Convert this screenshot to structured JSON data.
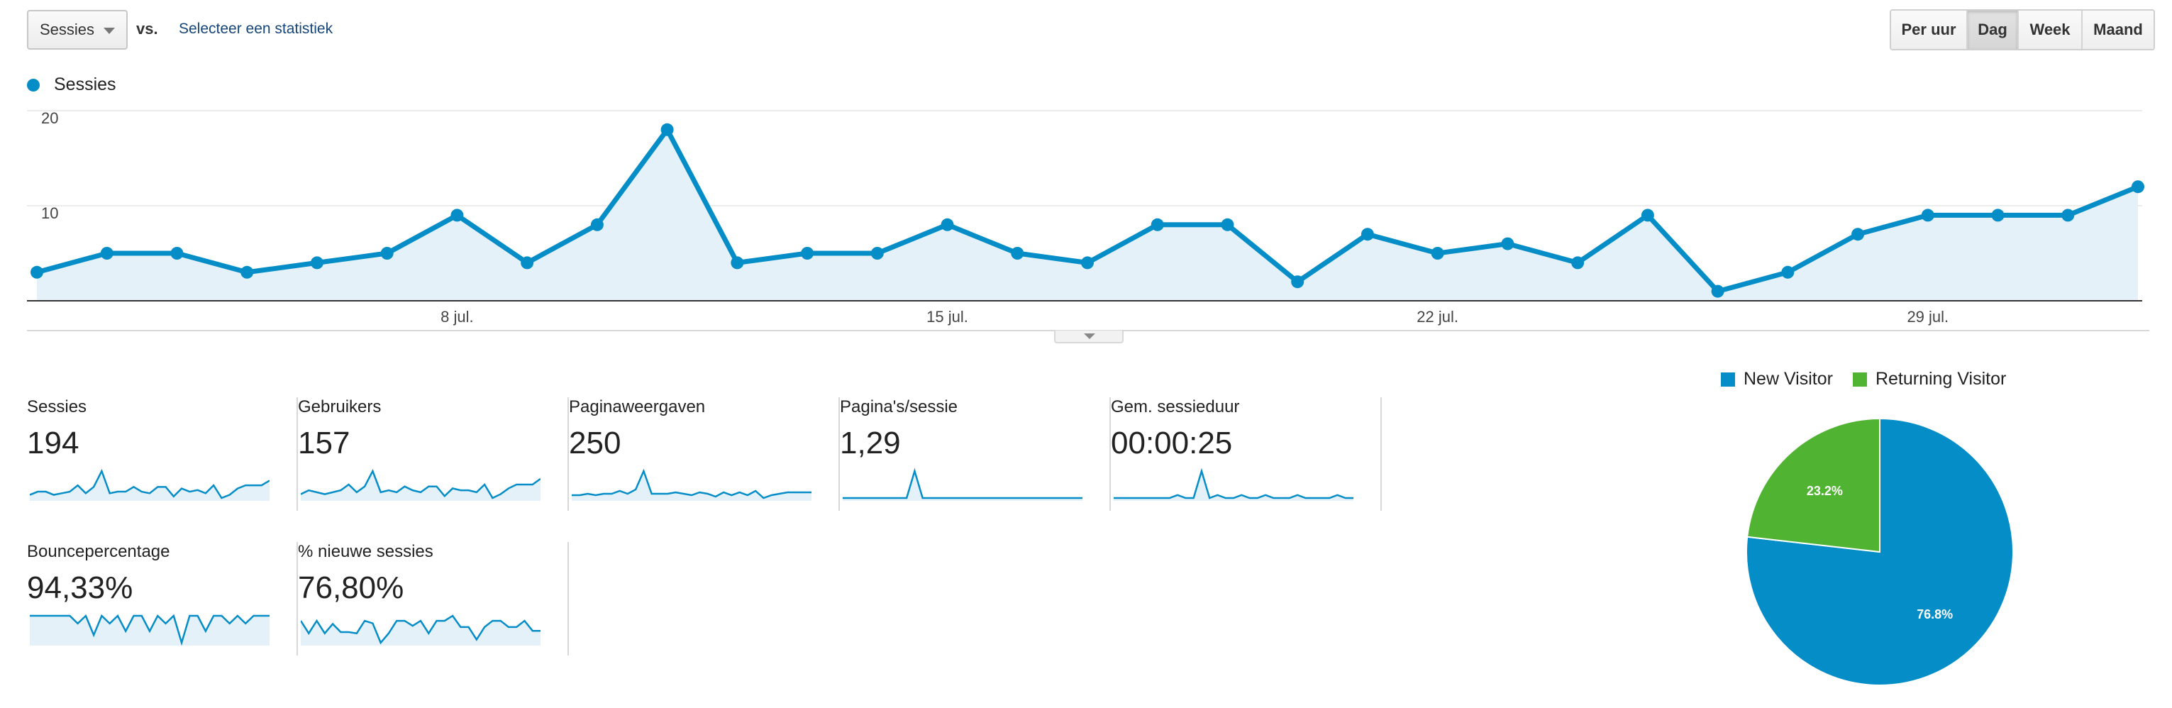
{
  "toolbar": {
    "metric_selected": "Sessies",
    "vs_label": "vs.",
    "compare_link": "Selecteer een statistiek",
    "periods": [
      "Per uur",
      "Dag",
      "Week",
      "Maand"
    ],
    "active_period": "Dag"
  },
  "colors": {
    "primary": "#058dc7",
    "secondary": "#50b432",
    "area_fill": "#e5f1f8",
    "spark_fill": "#e5f1f8"
  },
  "chart_data": [
    {
      "type": "line",
      "series": [
        {
          "name": "Sessies",
          "values": [
            3,
            5,
            5,
            3,
            4,
            5,
            9,
            4,
            8,
            18,
            4,
            5,
            5,
            8,
            5,
            4,
            8,
            8,
            2,
            7,
            5,
            6,
            4,
            9,
            1,
            3,
            7,
            9,
            9,
            9,
            12
          ]
        }
      ],
      "x_tick_labels": [
        "8 jul.",
        "15 jul.",
        "22 jul.",
        "29 jul."
      ],
      "x_tick_index": [
        6,
        13,
        20,
        27
      ],
      "y_ticks": [
        10,
        20
      ],
      "ylim": [
        0,
        20
      ],
      "grid": true,
      "area": true
    },
    {
      "type": "pie",
      "slices": [
        {
          "label": "New Visitor",
          "value": 76.8,
          "label_text": "76.8%"
        },
        {
          "label": "Returning Visitor",
          "value": 23.2,
          "label_text": "23.2%"
        }
      ],
      "legend_placement": "top"
    }
  ],
  "scorecards": [
    {
      "label": "Sessies",
      "value": "194",
      "spark": [
        3,
        5,
        5,
        3,
        4,
        5,
        9,
        4,
        8,
        18,
        4,
        5,
        5,
        8,
        5,
        4,
        8,
        8,
        2,
        7,
        5,
        6,
        4,
        9,
        1,
        3,
        7,
        9,
        9,
        9,
        12
      ]
    },
    {
      "label": "Gebruikers",
      "value": "157",
      "spark": [
        3,
        5,
        4,
        3,
        4,
        5,
        8,
        4,
        7,
        15,
        4,
        5,
        4,
        7,
        5,
        4,
        7,
        7,
        2,
        6,
        5,
        5,
        4,
        8,
        1,
        3,
        6,
        8,
        8,
        8,
        11
      ]
    },
    {
      "label": "Paginaweergaven",
      "value": "250",
      "spark": [
        3,
        3,
        4,
        3,
        4,
        4,
        6,
        4,
        7,
        20,
        4,
        4,
        4,
        5,
        4,
        3,
        5,
        4,
        2,
        5,
        3,
        5,
        3,
        6,
        1,
        3,
        4,
        5,
        5,
        5,
        5
      ]
    },
    {
      "label": "Pagina's/sessie",
      "value": "1,29",
      "spark": [
        1,
        1,
        1,
        1,
        1,
        1,
        1,
        1,
        1,
        6,
        1,
        1,
        1,
        1,
        1,
        1,
        1,
        1,
        1,
        1,
        1,
        1,
        1,
        1,
        1,
        1,
        1,
        1,
        1,
        1,
        1
      ]
    },
    {
      "label": "Gem. sessieduur",
      "value": "00:00:25",
      "spark": [
        0,
        0,
        0,
        0,
        0,
        0,
        0,
        0,
        1,
        0,
        0,
        9,
        0,
        1,
        0,
        0,
        1,
        0,
        0,
        1,
        0,
        0,
        0,
        1,
        0,
        0,
        0,
        0,
        1,
        0,
        0
      ]
    },
    {
      "label": "Bouncepercentage",
      "value": "94,33%",
      "spark": [
        100,
        100,
        100,
        100,
        100,
        100,
        96,
        100,
        90,
        100,
        96,
        100,
        92,
        100,
        100,
        92,
        100,
        96,
        100,
        86,
        100,
        100,
        92,
        100,
        100,
        96,
        100,
        96,
        100,
        100,
        100
      ]
    },
    {
      "label": "% nieuwe sessies",
      "value": "76,80%",
      "spark": [
        80,
        60,
        80,
        60,
        75,
        62,
        62,
        60,
        80,
        76,
        45,
        60,
        80,
        80,
        72,
        80,
        60,
        80,
        80,
        88,
        70,
        70,
        50,
        70,
        80,
        80,
        70,
        70,
        80,
        64,
        64
      ]
    }
  ]
}
